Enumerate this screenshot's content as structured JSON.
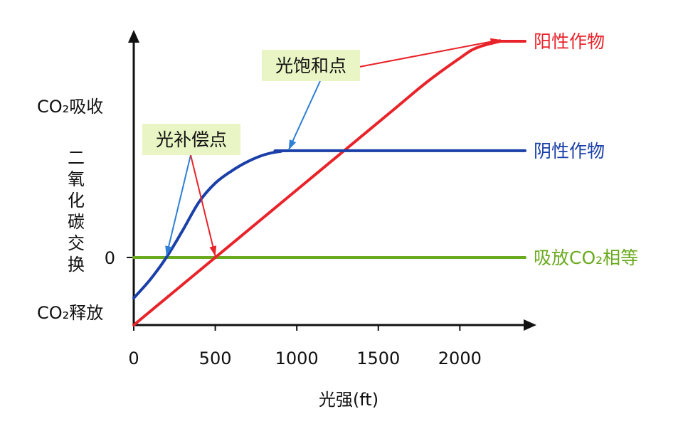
{
  "chart_data": {
    "type": "line",
    "xlabel": "光强(ft)",
    "ylabel_vertical": [
      "二",
      "氧",
      "化",
      "碳",
      "交",
      "换"
    ],
    "y_top_label": "CO₂吸收",
    "y_bottom_label": "CO₂释放",
    "xlim": [
      0,
      2400
    ],
    "ylim": [
      -1,
      3.3
    ],
    "x_ticks": [
      {
        "value": 0,
        "label": "0"
      },
      {
        "value": 500,
        "label": "500"
      },
      {
        "value": 1000,
        "label": "1000"
      },
      {
        "value": 1500,
        "label": "1500"
      },
      {
        "value": 2000,
        "label": "2000"
      }
    ],
    "y_ticks": [
      {
        "value": 0,
        "label": "0"
      }
    ],
    "series": [
      {
        "name": "阳性作物",
        "color": "#e8232a",
        "points": [
          [
            0,
            -1
          ],
          [
            250,
            -0.5
          ],
          [
            500,
            0
          ],
          [
            800,
            0.6
          ],
          [
            1000,
            1.0
          ],
          [
            1300,
            1.6
          ],
          [
            1600,
            2.2
          ],
          [
            1800,
            2.6
          ],
          [
            2000,
            2.95
          ],
          [
            2100,
            3.1
          ],
          [
            2250,
            3.2
          ],
          [
            2300,
            3.2
          ],
          [
            2400,
            3.2
          ]
        ]
      },
      {
        "name": "阴性作物",
        "color": "#1a3fa8",
        "points": [
          [
            0,
            -0.6
          ],
          [
            100,
            -0.33
          ],
          [
            200,
            0
          ],
          [
            300,
            0.4
          ],
          [
            400,
            0.82
          ],
          [
            500,
            1.1
          ],
          [
            600,
            1.28
          ],
          [
            700,
            1.42
          ],
          [
            800,
            1.52
          ],
          [
            900,
            1.57
          ],
          [
            1000,
            1.58
          ],
          [
            2400,
            1.58
          ]
        ]
      },
      {
        "name": "吸放CO₂相等",
        "color": "#6aaa1e",
        "points": [
          [
            0,
            0
          ],
          [
            2400,
            0
          ]
        ]
      }
    ],
    "annotations": [
      {
        "text": "光补偿点",
        "targets": [
          [
            200,
            0
          ],
          [
            500,
            0
          ]
        ],
        "arrow_colors": [
          "#2e7fd6",
          "#e8232a"
        ]
      },
      {
        "text": "光饱和点",
        "targets": [
          [
            950,
            1.57
          ],
          [
            2250,
            3.2
          ]
        ],
        "arrow_colors": [
          "#2e7fd6",
          "#e8232a"
        ]
      }
    ],
    "colors": {
      "axis": "#111111",
      "callout_bg": "#e9f5c4",
      "blue_arrow": "#2e7fd6"
    }
  }
}
